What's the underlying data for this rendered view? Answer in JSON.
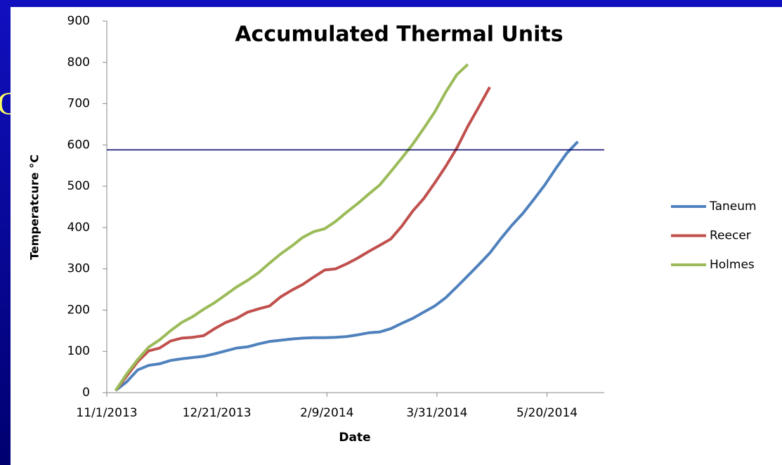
{
  "background_text": "C",
  "chart_data": {
    "type": "line",
    "title": "Accumulated Thermal Units",
    "x_label": "Date",
    "y_label": "Temperatcure °C",
    "x": [
      "11/5/2013",
      "11/10/2013",
      "11/15/2013",
      "11/20/2013",
      "11/25/2013",
      "11/30/2013",
      "12/5/2013",
      "12/10/2013",
      "12/15/2013",
      "12/20/2013",
      "12/25/2013",
      "12/30/2013",
      "1/4/2014",
      "1/9/2014",
      "1/14/2014",
      "1/19/2014",
      "1/24/2014",
      "1/29/2014",
      "2/3/2014",
      "2/8/2014",
      "2/13/2014",
      "2/18/2014",
      "2/23/2014",
      "2/28/2014",
      "3/5/2014",
      "3/10/2014",
      "3/15/2014",
      "3/20/2014",
      "3/25/2014",
      "3/30/2014",
      "4/4/2014",
      "4/9/2014",
      "4/14/2014",
      "4/19/2014",
      "4/24/2014",
      "4/29/2014",
      "5/4/2014",
      "5/9/2014",
      "5/14/2014",
      "5/19/2014",
      "5/24/2014",
      "5/29/2014",
      "6/3/2014"
    ],
    "series": [
      {
        "name": "Taneum",
        "color": "#4f81bd",
        "values": [
          5,
          26,
          55,
          66,
          70,
          78,
          82,
          85,
          88,
          94,
          101,
          108,
          111,
          118,
          124,
          127,
          130,
          132,
          133,
          133,
          134,
          136,
          140,
          145,
          147,
          155,
          168,
          180,
          195,
          210,
          230,
          256,
          283,
          310,
          338,
          373,
          405,
          434,
          468,
          503,
          543,
          580,
          608
        ]
      },
      {
        "name": "Reecer",
        "color": "#c0504d",
        "values": [
          5,
          40,
          75,
          101,
          108,
          125,
          132,
          134,
          138,
          155,
          170,
          180,
          195,
          203,
          210,
          232,
          248,
          262,
          280,
          297,
          300,
          312,
          326,
          342,
          357,
          372,
          403,
          440,
          470,
          508,
          548,
          592,
          645,
          692,
          740,
          null,
          null,
          null,
          null,
          null,
          null,
          null,
          null
        ]
      },
      {
        "name": "Holmes",
        "color": "#9bbb59",
        "values": [
          5,
          45,
          80,
          110,
          128,
          150,
          170,
          184,
          202,
          218,
          237,
          256,
          272,
          291,
          314,
          336,
          355,
          376,
          390,
          397,
          415,
          437,
          458,
          481,
          503,
          535,
          568,
          602,
          640,
          680,
          728,
          770,
          795,
          null,
          null,
          null,
          null,
          null,
          null,
          null,
          null,
          null,
          null
        ]
      }
    ],
    "xlim": [
      "11/1/2013",
      "6/15/2014"
    ],
    "xticks": [
      "11/1/2013",
      "12/21/2013",
      "2/9/2014",
      "3/31/2014",
      "5/20/2014"
    ],
    "ylim": [
      0,
      900
    ],
    "yticks": [
      0,
      100,
      200,
      300,
      400,
      500,
      600,
      700,
      800,
      900
    ],
    "reference_line": {
      "value": 588,
      "color": "#000066"
    },
    "legend": "right"
  }
}
